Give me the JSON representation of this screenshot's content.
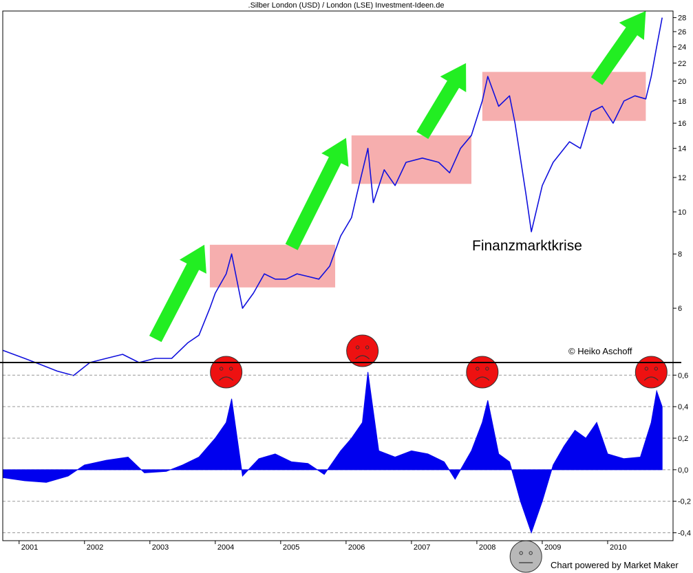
{
  "chart_data": [
    {
      "type": "line",
      "title": ".Silber London (USD) / London (LSE) Investment-Ideen.de",
      "y_scale": "log",
      "ylim": [
        4.5,
        29
      ],
      "y_ticks": [
        "6",
        "8",
        "10",
        "12",
        "14",
        "16",
        "18",
        "20",
        "22",
        "24",
        "26",
        "28"
      ],
      "y_tick_values": [
        6,
        8,
        10,
        12,
        14,
        16,
        18,
        20,
        22,
        24,
        26,
        28
      ],
      "x_range": [
        "2000-10",
        "2010-12"
      ],
      "x_ticks": [
        "2001",
        "2002",
        "2003",
        "2004",
        "2005",
        "2006",
        "2007",
        "2008",
        "2009",
        "2010"
      ],
      "series": [
        {
          "color": "#1010dd",
          "points": [
            [
              "2000-10",
              4.8
            ],
            [
              "2000-12",
              4.7
            ],
            [
              "2001-02",
              4.6
            ],
            [
              "2001-05",
              4.45
            ],
            [
              "2001-08",
              4.3
            ],
            [
              "2001-11",
              4.2
            ],
            [
              "2002-02",
              4.5
            ],
            [
              "2002-05",
              4.6
            ],
            [
              "2002-08",
              4.7
            ],
            [
              "2002-11",
              4.5
            ],
            [
              "2003-02",
              4.6
            ],
            [
              "2003-05",
              4.6
            ],
            [
              "2003-08",
              5.0
            ],
            [
              "2003-10",
              5.2
            ],
            [
              "2003-12",
              6.0
            ],
            [
              "2004-01",
              6.5
            ],
            [
              "2004-03",
              7.2
            ],
            [
              "2004-04",
              8.0
            ],
            [
              "2004-06",
              6.0
            ],
            [
              "2004-08",
              6.5
            ],
            [
              "2004-10",
              7.2
            ],
            [
              "2004-12",
              7.0
            ],
            [
              "2005-02",
              7.0
            ],
            [
              "2005-04",
              7.2
            ],
            [
              "2005-06",
              7.1
            ],
            [
              "2005-08",
              7.0
            ],
            [
              "2005-10",
              7.5
            ],
            [
              "2005-12",
              8.8
            ],
            [
              "2006-02",
              9.7
            ],
            [
              "2006-03",
              11.0
            ],
            [
              "2006-05",
              14.0
            ],
            [
              "2006-06",
              10.5
            ],
            [
              "2006-08",
              12.5
            ],
            [
              "2006-10",
              11.5
            ],
            [
              "2006-12",
              13.0
            ],
            [
              "2007-03",
              13.3
            ],
            [
              "2007-06",
              13.0
            ],
            [
              "2007-08",
              12.3
            ],
            [
              "2007-10",
              14.0
            ],
            [
              "2007-12",
              15.0
            ],
            [
              "2008-02",
              18.0
            ],
            [
              "2008-03",
              20.5
            ],
            [
              "2008-05",
              17.5
            ],
            [
              "2008-07",
              18.5
            ],
            [
              "2008-08",
              16.0
            ],
            [
              "2008-10",
              11.0
            ],
            [
              "2008-11",
              9.0
            ],
            [
              "2009-01",
              11.5
            ],
            [
              "2009-03",
              13.0
            ],
            [
              "2009-06",
              14.5
            ],
            [
              "2009-08",
              14.0
            ],
            [
              "2009-10",
              17.0
            ],
            [
              "2009-12",
              17.5
            ],
            [
              "2010-02",
              16.0
            ],
            [
              "2010-04",
              18.0
            ],
            [
              "2010-06",
              18.5
            ],
            [
              "2010-08",
              18.2
            ],
            [
              "2010-09",
              20.5
            ],
            [
              "2010-10",
              24.0
            ],
            [
              "2010-11",
              28.0
            ]
          ]
        }
      ],
      "annotations": [
        {
          "text": "Finanzmarktkrise"
        },
        {
          "text": "© Heiko Aschoff"
        }
      ],
      "consolidation_boxes": [
        {
          "x0": "2003-12",
          "x1": "2005-11",
          "y0": 6.7,
          "y1": 8.4
        },
        {
          "x0": "2006-02",
          "x1": "2007-12",
          "y0": 11.6,
          "y1": 15.0
        },
        {
          "x0": "2008-02",
          "x1": "2010-08",
          "y0": 16.2,
          "y1": 21.0
        }
      ],
      "arrows": [
        {
          "x0": "2003-02",
          "y0": 5.1,
          "x1": "2003-11",
          "y1": 8.4
        },
        {
          "x0": "2005-03",
          "y0": 8.3,
          "x1": "2006-01",
          "y1": 14.8
        },
        {
          "x0": "2007-03",
          "y0": 15.0,
          "x1": "2007-11",
          "y1": 22.0
        },
        {
          "x0": "2009-11",
          "y0": 20.0,
          "x1": "2010-08",
          "y1": 29.0
        }
      ]
    },
    {
      "type": "bar",
      "ylim": [
        -0.45,
        0.68
      ],
      "y_ticks": [
        "0,6",
        "0,4",
        "0,2",
        "0,0",
        "-0,2",
        "-0,4"
      ],
      "y_tick_values": [
        0.6,
        0.4,
        0.2,
        0.0,
        -0.2,
        -0.4
      ],
      "x_range": [
        "2000-10",
        "2010-12"
      ],
      "color": "#0000ee",
      "points": [
        [
          "2000-10",
          -0.05
        ],
        [
          "2001-02",
          -0.07
        ],
        [
          "2001-06",
          -0.08
        ],
        [
          "2001-10",
          -0.04
        ],
        [
          "2002-01",
          0.03
        ],
        [
          "2002-05",
          0.06
        ],
        [
          "2002-09",
          0.08
        ],
        [
          "2002-12",
          -0.02
        ],
        [
          "2003-04",
          -0.01
        ],
        [
          "2003-07",
          0.03
        ],
        [
          "2003-10",
          0.08
        ],
        [
          "2004-01",
          0.2
        ],
        [
          "2004-03",
          0.3
        ],
        [
          "2004-04",
          0.45
        ],
        [
          "2004-06",
          -0.04
        ],
        [
          "2004-09",
          0.07
        ],
        [
          "2004-12",
          0.1
        ],
        [
          "2005-03",
          0.05
        ],
        [
          "2005-06",
          0.04
        ],
        [
          "2005-09",
          -0.03
        ],
        [
          "2005-12",
          0.12
        ],
        [
          "2006-02",
          0.2
        ],
        [
          "2006-04",
          0.3
        ],
        [
          "2006-05",
          0.62
        ],
        [
          "2006-07",
          0.12
        ],
        [
          "2006-10",
          0.08
        ],
        [
          "2007-01",
          0.12
        ],
        [
          "2007-04",
          0.1
        ],
        [
          "2007-07",
          0.05
        ],
        [
          "2007-09",
          -0.06
        ],
        [
          "2007-12",
          0.12
        ],
        [
          "2008-02",
          0.3
        ],
        [
          "2008-03",
          0.44
        ],
        [
          "2008-05",
          0.1
        ],
        [
          "2008-07",
          0.05
        ],
        [
          "2008-09",
          -0.2
        ],
        [
          "2008-11",
          -0.4
        ],
        [
          "2009-01",
          -0.2
        ],
        [
          "2009-03",
          0.03
        ],
        [
          "2009-05",
          0.15
        ],
        [
          "2009-07",
          0.25
        ],
        [
          "2009-09",
          0.2
        ],
        [
          "2009-11",
          0.3
        ],
        [
          "2010-01",
          0.1
        ],
        [
          "2010-04",
          0.07
        ],
        [
          "2010-07",
          0.08
        ],
        [
          "2010-09",
          0.3
        ],
        [
          "2010-10",
          0.5
        ],
        [
          "2010-11",
          0.4
        ]
      ],
      "x_ticks": [
        "2001",
        "2002",
        "2003",
        "2004",
        "2005",
        "2006",
        "2007",
        "2008",
        "2009",
        "2010"
      ],
      "smileys": [
        {
          "x": "2004-03",
          "mood": "sad",
          "color": "#ee1111"
        },
        {
          "x": "2006-04",
          "mood": "sad",
          "color": "#ee1111"
        },
        {
          "x": "2008-02",
          "mood": "sad",
          "color": "#ee1111"
        },
        {
          "x": "2010-09",
          "mood": "sad",
          "color": "#ee1111"
        },
        {
          "x": "2008-10",
          "mood": "neutral",
          "color": "#b8b8b8"
        }
      ]
    }
  ],
  "footer": {
    "credit": "Chart powered by Market Maker"
  },
  "colors": {
    "box": "#f4a0a0",
    "arrow": "#22ee22",
    "axis": "#000000",
    "grid": "#999999"
  }
}
